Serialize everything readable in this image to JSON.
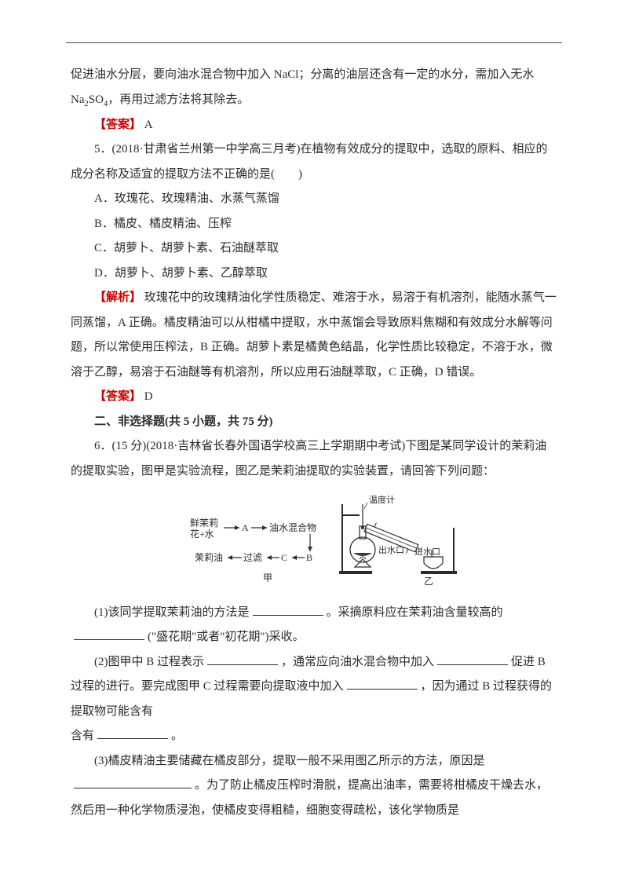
{
  "para_intro_cont": "促进油水分层，要向油水混合物中加入 NaCl；分离的油层还含有一定的水分，需加入无水 Na",
  "para_intro_cont2": "SO",
  "para_intro_cont3": "，再用过滤方法将其除去。",
  "ans_label": "【答案】",
  "ans1": " A",
  "q5_stem1": "5．(2018·甘肃省兰州第一中学高三月考)在植物有效成分的提取中，选取的原料、相应的成分名称及适宜的提取方法不正确的是(　　)",
  "q5_A": "A．玫瑰花、玫瑰精油、水蒸气蒸馏",
  "q5_B": "B．橘皮、橘皮精油、压榨",
  "q5_C": "C．胡萝卜、胡萝卜素、石油醚萃取",
  "q5_D": "D．胡萝卜、胡萝卜素、乙醇萃取",
  "explain_label": "【解析】",
  "q5_expl": " 玫瑰花中的玫瑰精油化学性质稳定、难溶于水，易溶于有机溶剂，能随水蒸气一同蒸馏，A 正确。橘皮精油可以从柑橘中提取，水中蒸馏会导致原料焦糊和有效成分水解等问题，所以常使用压榨法，B 正确。胡萝卜素是橘黄色结晶，化学性质比较稳定，不溶于水，微溶于乙醇，易溶于石油醚等有机溶剂，所以应用石油醚萃取，C 正确，D 错误。",
  "ans2": " D",
  "sec2": "二、非选择题(共 5 小题，共 75 分)",
  "q6_stem": "6．(15 分)(2018·吉林省长春外国语学校高三上学期期中考试)下图是某同学设计的茉莉油的提取实验，图甲是实验流程，图乙是茉莉油提取的实验装置，请回答下列问题：",
  "fig": {
    "left_in": "鲜茉莉\n花+水",
    "A": "A",
    "mix": "油水混合物",
    "jasmine": "茉莉油",
    "filter": "过滤",
    "C": "C",
    "B": "B",
    "cap_l": "甲",
    "cap_r": "乙",
    "thermo": "温度计",
    "out": "出水口",
    "in": "进水口",
    "colors": {
      "stroke": "#2b2b2b",
      "fill_dark": "#3a3a3a",
      "bg": "#ffffff"
    }
  },
  "q6_1a": "(1)该同学提取茉莉油的方法是",
  "q6_1b": "。采摘原料应在茉莉油含量较高的",
  "q6_1c": "(\"盛花期\"或者\"初花期\")采收。",
  "q6_2a": "(2)图甲中 B 过程表示",
  "q6_2b": "，通常应向油水混合物中加入",
  "q6_2c": "促进 B 过程的进行。要完成图甲 C 过程需要向提取液中加入",
  "q6_2d": "，因为通过 B 过程获得的提取物可能含有",
  "q6_2e": "。",
  "q6_3a": "(3)橘皮精油主要储藏在橘皮部分，提取一般不采用图乙所示的方法，原因是",
  "q6_3b": "。为了防止橘皮压榨时滑脱，提高出油率，需要将柑橘皮干燥去水，然后用一种化学物质浸泡，使橘皮变得粗糙，细胞变得疏松，该化学物质是"
}
